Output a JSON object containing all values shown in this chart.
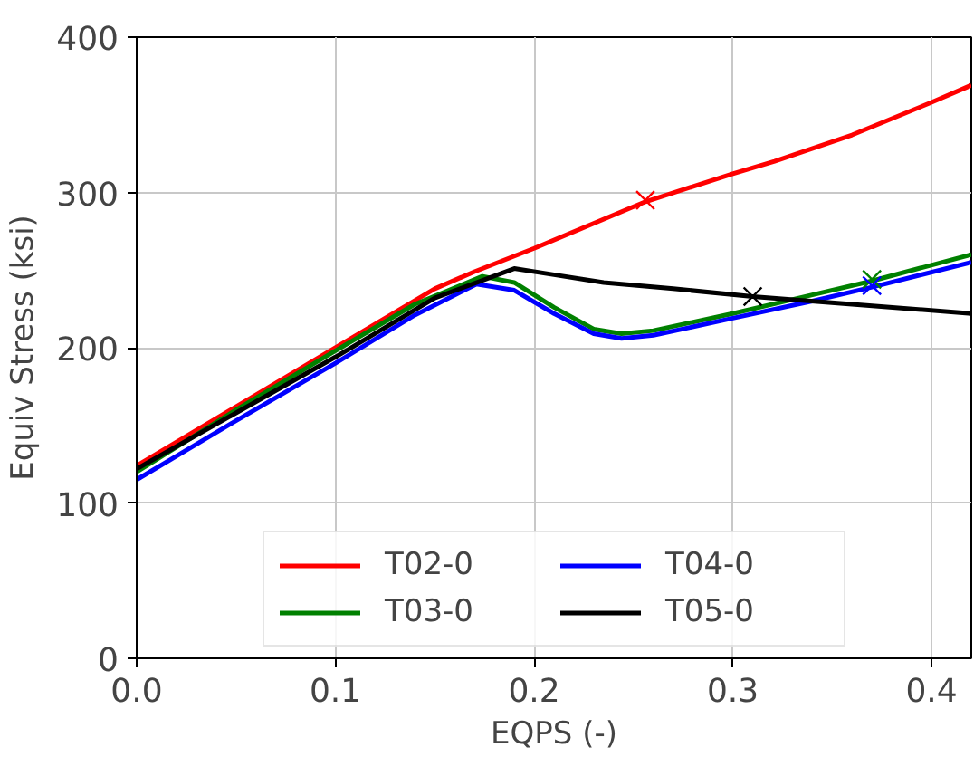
{
  "chart_data": {
    "type": "line",
    "xlabel": "EQPS (-)",
    "ylabel": "Equiv Stress (ksi)",
    "xlim": [
      0,
      0.42
    ],
    "ylim": [
      0,
      400
    ],
    "xticks": [
      {
        "value": 0,
        "label": "0.0"
      },
      0.1,
      0.2,
      0.3,
      0.4
    ],
    "yticks": [
      0,
      100,
      200,
      300,
      400
    ],
    "grid": true,
    "legend": "bottom",
    "line_style": "solid",
    "series": [
      {
        "name": "T02-0",
        "color": "#ff0000",
        "x": [
          0,
          0.05,
          0.1,
          0.15,
          0.17,
          0.2,
          0.256,
          0.3,
          0.321,
          0.36,
          0.4,
          0.42
        ],
        "values": [
          124,
          162,
          200,
          238,
          249,
          264,
          294,
          312,
          320,
          337,
          358,
          369
        ]
      },
      {
        "name": "T03-0",
        "color": "#008000",
        "x": [
          0,
          0.05,
          0.1,
          0.14,
          0.174,
          0.19,
          0.21,
          0.23,
          0.244,
          0.26,
          0.3,
          0.34,
          0.37,
          0.42
        ],
        "values": [
          120,
          160,
          198,
          228,
          246,
          242,
          226,
          212,
          209,
          211,
          222,
          234,
          243,
          260
        ]
      },
      {
        "name": "T04-0",
        "color": "#0000ff",
        "x": [
          0,
          0.05,
          0.1,
          0.14,
          0.171,
          0.19,
          0.21,
          0.23,
          0.244,
          0.26,
          0.3,
          0.34,
          0.37,
          0.42
        ],
        "values": [
          115,
          153,
          190,
          221,
          241,
          237,
          222,
          209,
          206,
          208,
          219,
          230,
          239,
          255
        ]
      },
      {
        "name": "T05-0",
        "color": "#000000",
        "x": [
          0,
          0.05,
          0.1,
          0.15,
          0.19,
          0.21,
          0.235,
          0.27,
          0.31,
          0.36,
          0.42
        ],
        "values": [
          122,
          158,
          194,
          232,
          251,
          247,
          242,
          238,
          233,
          228,
          222
        ]
      },
      {
        "type": "scatter",
        "marker": "cross",
        "color": "#ff0000",
        "x": [
          0.256
        ],
        "values": [
          295
        ]
      },
      {
        "type": "scatter",
        "marker": "cross",
        "color": "#008000",
        "x": [
          0.37
        ],
        "values": [
          244
        ]
      },
      {
        "type": "scatter",
        "marker": "cross",
        "color": "#0000ff",
        "x": [
          0.37
        ],
        "values": [
          240
        ]
      },
      {
        "type": "scatter",
        "marker": "cross",
        "color": "#000000",
        "x": [
          0.31
        ],
        "values": [
          233
        ]
      }
    ]
  }
}
